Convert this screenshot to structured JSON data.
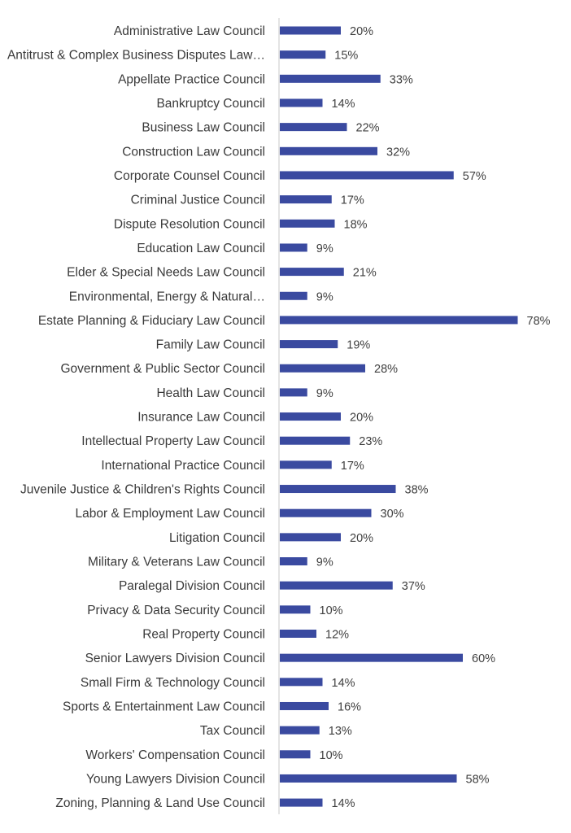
{
  "chart_data": {
    "type": "bar",
    "orientation": "horizontal",
    "categories": [
      "Administrative Law Council",
      "Antitrust & Complex Business Disputes Law…",
      "Appellate Practice Council",
      "Bankruptcy Council",
      "Business Law Council",
      "Construction Law Council",
      "Corporate Counsel Council",
      "Criminal Justice Council",
      "Dispute Resolution Council",
      "Education Law Council",
      "Elder & Special Needs Law Council",
      "Environmental, Energy & Natural…",
      "Estate Planning & Fiduciary Law Council",
      "Family Law Council",
      "Government & Public Sector Council",
      "Health Law Council",
      "Insurance Law Council",
      "Intellectual Property Law Council",
      "International Practice Council",
      "Juvenile Justice & Children's Rights Council",
      "Labor & Employment Law Council",
      "Litigation Council",
      "Military & Veterans Law Council",
      "Paralegal Division Council",
      "Privacy & Data Security Council",
      "Real Property Council",
      "Senior Lawyers Division Council",
      "Small Firm & Technology Council",
      "Sports & Entertainment Law Council",
      "Tax Council",
      "Workers' Compensation Council",
      "Young Lawyers Division Council",
      "Zoning, Planning & Land Use Council"
    ],
    "values": [
      20,
      15,
      33,
      14,
      22,
      32,
      57,
      17,
      18,
      9,
      21,
      9,
      78,
      19,
      28,
      9,
      20,
      23,
      17,
      38,
      30,
      20,
      9,
      37,
      10,
      12,
      60,
      14,
      16,
      13,
      10,
      58,
      14
    ],
    "value_labels": [
      "20%",
      "15%",
      "33%",
      "14%",
      "22%",
      "32%",
      "57%",
      "17%",
      "18%",
      "9%",
      "21%",
      "9%",
      "78%",
      "19%",
      "28%",
      "9%",
      "20%",
      "23%",
      "17%",
      "38%",
      "30%",
      "20%",
      "9%",
      "37%",
      "10%",
      "12%",
      "60%",
      "14%",
      "16%",
      "13%",
      "10%",
      "58%",
      "14%"
    ],
    "title": "",
    "xlabel": "",
    "ylabel": "",
    "xlim": [
      0,
      78
    ],
    "grid": false,
    "legend": "none",
    "bar_color": "#3a4aa0",
    "axis_color": "#c8c8c8"
  }
}
